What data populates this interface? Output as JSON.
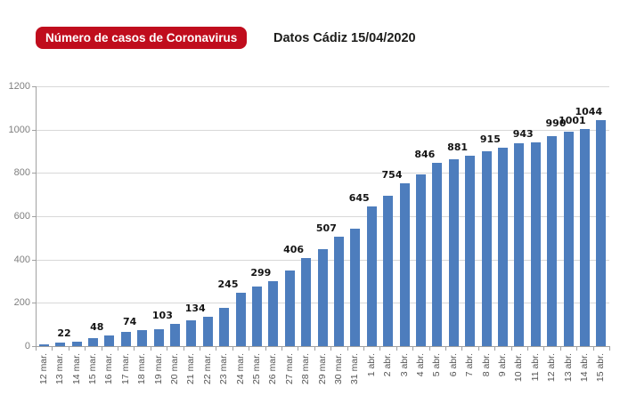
{
  "header": {
    "badge_label": "Número de casos de Coronavirus",
    "subtitle": "Datos Cádiz 15/04/2020"
  },
  "colors": {
    "badge_bg": "#c00d1d",
    "badge_text": "#ffffff",
    "subtitle_text": "#1d1d1b",
    "bar": "#4d7dbd",
    "gridline": "#d8d8d8",
    "axis": "#a0a0a0",
    "y_label": "#7f7f7f",
    "x_label": "#555555",
    "value_label": "#141414"
  },
  "chart_data": {
    "type": "bar",
    "title": "Número de casos de Coronavirus",
    "subtitle": "Datos Cádiz 15/04/2020",
    "categories": [
      "12 mar.",
      "13 mar.",
      "14 mar.",
      "15 mar.",
      "16 mar.",
      "17 mar.",
      "18 mar.",
      "19 mar.",
      "20 mar.",
      "21 mar.",
      "22 mar.",
      "23 mar.",
      "24 mar.",
      "25 mar.",
      "26 mar.",
      "27 mar.",
      "28 mar.",
      "29 mar.",
      "30 mar.",
      "31 mar.",
      "1 abr.",
      "2 abr.",
      "3 abr.",
      "4 abr.",
      "5 abr.",
      "6 abr.",
      "7 abr.",
      "8 abr.",
      "9 abr.",
      "10 abr.",
      "11 abr.",
      "12 abr.",
      "13 abr.",
      "14 abr.",
      "15 abr."
    ],
    "values": [
      10,
      17,
      22,
      37,
      48,
      64,
      74,
      80,
      103,
      121,
      134,
      175,
      245,
      277,
      299,
      348,
      406,
      448,
      507,
      542,
      645,
      696,
      754,
      792,
      846,
      862,
      881,
      898,
      915,
      938,
      943,
      970,
      990,
      1001,
      1044
    ],
    "labeled_categories": [
      "14 mar.",
      "16 mar.",
      "18 mar.",
      "20 mar.",
      "22 mar.",
      "24 mar.",
      "26 mar.",
      "28 mar.",
      "30 mar.",
      "1 abr.",
      "3 abr.",
      "5 abr.",
      "7 abr.",
      "9 abr.",
      "11 abr.",
      "13 abr.",
      "14 abr.",
      "15 abr."
    ],
    "yticks": [
      0,
      200,
      400,
      600,
      800,
      1000,
      1200
    ],
    "ylim": [
      0,
      1200
    ],
    "grid": "horizontal",
    "legend": "none",
    "xlabel": "",
    "ylabel": ""
  }
}
